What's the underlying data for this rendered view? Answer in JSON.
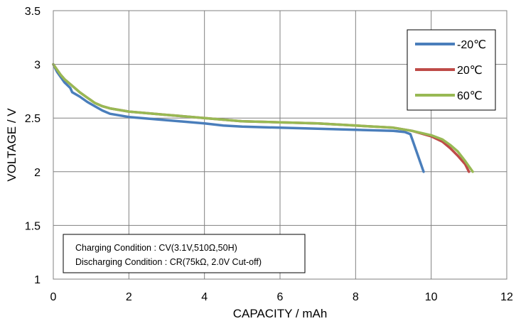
{
  "chart_data": {
    "type": "line",
    "xlabel": "CAPACITY / mAh",
    "ylabel": "VOLTAGE / V",
    "xlim": [
      0,
      12
    ],
    "ylim": [
      1,
      3.5
    ],
    "x_ticks": [
      "0",
      "2",
      "4",
      "6",
      "8",
      "10",
      "12"
    ],
    "y_ticks": [
      "1",
      "1.5",
      "2",
      "2.5",
      "3",
      "3.5"
    ],
    "grid": true,
    "legend_position": "top-right",
    "annotation": [
      "Charging Condition : CV(3.1V,510Ω,50H)",
      "Discharging Condition : CR(75kΩ, 2.0V Cut-off)"
    ],
    "series": [
      {
        "name": "-20℃",
        "color": "#4a7ebb",
        "points": [
          [
            0,
            3.0
          ],
          [
            0.1,
            2.93
          ],
          [
            0.2,
            2.88
          ],
          [
            0.3,
            2.83
          ],
          [
            0.45,
            2.78
          ],
          [
            0.5,
            2.74
          ],
          [
            0.7,
            2.7
          ],
          [
            0.9,
            2.65
          ],
          [
            1.1,
            2.61
          ],
          [
            1.3,
            2.57
          ],
          [
            1.5,
            2.54
          ],
          [
            2.0,
            2.51
          ],
          [
            3.0,
            2.48
          ],
          [
            4.0,
            2.45
          ],
          [
            4.5,
            2.43
          ],
          [
            5.0,
            2.42
          ],
          [
            6.0,
            2.41
          ],
          [
            7.0,
            2.4
          ],
          [
            8.0,
            2.39
          ],
          [
            9.0,
            2.38
          ],
          [
            9.3,
            2.37
          ],
          [
            9.45,
            2.35
          ],
          [
            9.5,
            2.3
          ],
          [
            9.6,
            2.2
          ],
          [
            9.7,
            2.1
          ],
          [
            9.8,
            2.0
          ]
        ]
      },
      {
        "name": "20℃",
        "color": "#be4b48",
        "points": [
          [
            0,
            3.0
          ],
          [
            0.1,
            2.95
          ],
          [
            0.2,
            2.9
          ],
          [
            0.3,
            2.86
          ],
          [
            0.5,
            2.8
          ],
          [
            0.7,
            2.74
          ],
          [
            0.9,
            2.69
          ],
          [
            1.1,
            2.64
          ],
          [
            1.3,
            2.61
          ],
          [
            1.5,
            2.59
          ],
          [
            2.0,
            2.56
          ],
          [
            3.0,
            2.53
          ],
          [
            4.0,
            2.5
          ],
          [
            5.0,
            2.47
          ],
          [
            6.0,
            2.46
          ],
          [
            7.0,
            2.45
          ],
          [
            8.0,
            2.43
          ],
          [
            9.0,
            2.41
          ],
          [
            9.5,
            2.38
          ],
          [
            10.0,
            2.33
          ],
          [
            10.3,
            2.28
          ],
          [
            10.5,
            2.22
          ],
          [
            10.7,
            2.15
          ],
          [
            10.9,
            2.07
          ],
          [
            11.0,
            2.0
          ]
        ]
      },
      {
        "name": "60℃",
        "color": "#98b954",
        "points": [
          [
            0,
            3.0
          ],
          [
            0.1,
            2.95
          ],
          [
            0.2,
            2.9
          ],
          [
            0.3,
            2.86
          ],
          [
            0.5,
            2.8
          ],
          [
            0.7,
            2.74
          ],
          [
            0.9,
            2.69
          ],
          [
            1.1,
            2.64
          ],
          [
            1.3,
            2.61
          ],
          [
            1.5,
            2.59
          ],
          [
            2.0,
            2.56
          ],
          [
            3.0,
            2.53
          ],
          [
            4.0,
            2.5
          ],
          [
            5.0,
            2.47
          ],
          [
            6.0,
            2.46
          ],
          [
            7.0,
            2.45
          ],
          [
            8.0,
            2.43
          ],
          [
            9.0,
            2.41
          ],
          [
            9.5,
            2.38
          ],
          [
            10.0,
            2.34
          ],
          [
            10.3,
            2.3
          ],
          [
            10.5,
            2.25
          ],
          [
            10.7,
            2.19
          ],
          [
            10.9,
            2.1
          ],
          [
            11.1,
            2.0
          ]
        ]
      }
    ]
  }
}
